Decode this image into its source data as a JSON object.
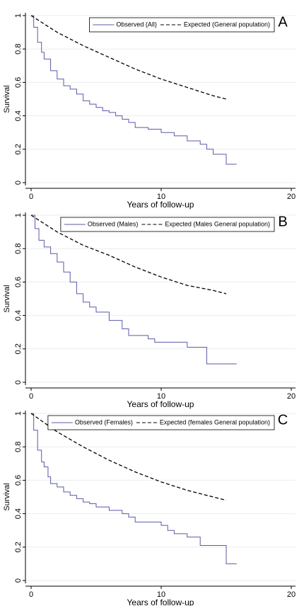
{
  "chart_data": [
    {
      "type": "line",
      "annotation": "A",
      "x_label": "Years of follow-up",
      "y_label": "Survival",
      "xlim": [
        0,
        20
      ],
      "xticks": [
        0,
        10,
        20
      ],
      "ylim": [
        0,
        1
      ],
      "yticks": [
        0,
        0.2,
        0.4,
        0.6,
        0.8,
        1
      ],
      "grid": true,
      "legend": "top right",
      "series": [
        {
          "name": "Observed (All)",
          "color": "#5a5aa8",
          "style": "step",
          "x": [
            0,
            0.2,
            0.5,
            0.8,
            1,
            1.5,
            2,
            2.5,
            3,
            3.5,
            4,
            4.5,
            5,
            5.5,
            6,
            6.5,
            7,
            7.5,
            8,
            9,
            10,
            11,
            12,
            13,
            13.5,
            14,
            15,
            15.8
          ],
          "values": [
            1,
            0.93,
            0.84,
            0.78,
            0.74,
            0.67,
            0.62,
            0.58,
            0.56,
            0.53,
            0.49,
            0.47,
            0.45,
            0.43,
            0.42,
            0.4,
            0.38,
            0.36,
            0.33,
            0.32,
            0.3,
            0.28,
            0.25,
            0.23,
            0.2,
            0.17,
            0.11,
            0.11
          ]
        },
        {
          "name": "Expected (General population)",
          "color": "#000000",
          "style": "dashed",
          "x": [
            0,
            2,
            4,
            6,
            8,
            10,
            12,
            14,
            15
          ],
          "values": [
            1,
            0.9,
            0.82,
            0.75,
            0.68,
            0.62,
            0.57,
            0.52,
            0.5
          ]
        }
      ]
    },
    {
      "type": "line",
      "annotation": "B",
      "x_label": "Years of follow-up",
      "y_label": "Survival",
      "xlim": [
        0,
        20
      ],
      "xticks": [
        0,
        10,
        20
      ],
      "ylim": [
        0,
        1
      ],
      "yticks": [
        0,
        0.2,
        0.4,
        0.6,
        0.8,
        1
      ],
      "grid": true,
      "legend": "top right",
      "series": [
        {
          "name": "Observed (Males)",
          "color": "#5a5aa8",
          "style": "step",
          "x": [
            0,
            0.3,
            0.6,
            1,
            1.5,
            2,
            2.5,
            3,
            3.5,
            4,
            4.5,
            5,
            6,
            7,
            7.5,
            9,
            9.5,
            12,
            13.5,
            15.8
          ],
          "values": [
            1,
            0.92,
            0.85,
            0.81,
            0.77,
            0.72,
            0.66,
            0.6,
            0.53,
            0.48,
            0.45,
            0.42,
            0.37,
            0.32,
            0.28,
            0.26,
            0.24,
            0.21,
            0.11,
            0.11
          ]
        },
        {
          "name": "Expected (Males General population)",
          "color": "#000000",
          "style": "dashed",
          "x": [
            0,
            2,
            4,
            6,
            8,
            10,
            12,
            14,
            15
          ],
          "values": [
            1,
            0.9,
            0.82,
            0.76,
            0.69,
            0.63,
            0.58,
            0.55,
            0.53
          ]
        }
      ]
    },
    {
      "type": "line",
      "annotation": "C",
      "x_label": "Years of follow-up",
      "y_label": "Survival",
      "xlim": [
        0,
        20
      ],
      "xticks": [
        0,
        10,
        20
      ],
      "ylim": [
        0,
        1
      ],
      "yticks": [
        0,
        0.2,
        0.4,
        0.6,
        0.8,
        1
      ],
      "grid": true,
      "legend": "top right",
      "series": [
        {
          "name": "Observed (Females)",
          "color": "#5a5aa8",
          "style": "step",
          "x": [
            0,
            0.2,
            0.5,
            0.8,
            1,
            1.3,
            1.5,
            2,
            2.5,
            3,
            3.5,
            4,
            4.5,
            5,
            6,
            7,
            7.5,
            8,
            10,
            10.5,
            11,
            12,
            13,
            15,
            15.8
          ],
          "values": [
            1,
            0.9,
            0.78,
            0.71,
            0.68,
            0.62,
            0.58,
            0.56,
            0.53,
            0.51,
            0.49,
            0.47,
            0.46,
            0.44,
            0.42,
            0.4,
            0.38,
            0.35,
            0.33,
            0.3,
            0.28,
            0.26,
            0.21,
            0.1,
            0.1
          ]
        },
        {
          "name": "Expected (females General population)",
          "color": "#000000",
          "style": "dashed",
          "x": [
            0,
            2,
            4,
            6,
            8,
            10,
            12,
            14,
            15
          ],
          "values": [
            1,
            0.89,
            0.8,
            0.72,
            0.65,
            0.59,
            0.54,
            0.5,
            0.48
          ]
        }
      ]
    }
  ]
}
